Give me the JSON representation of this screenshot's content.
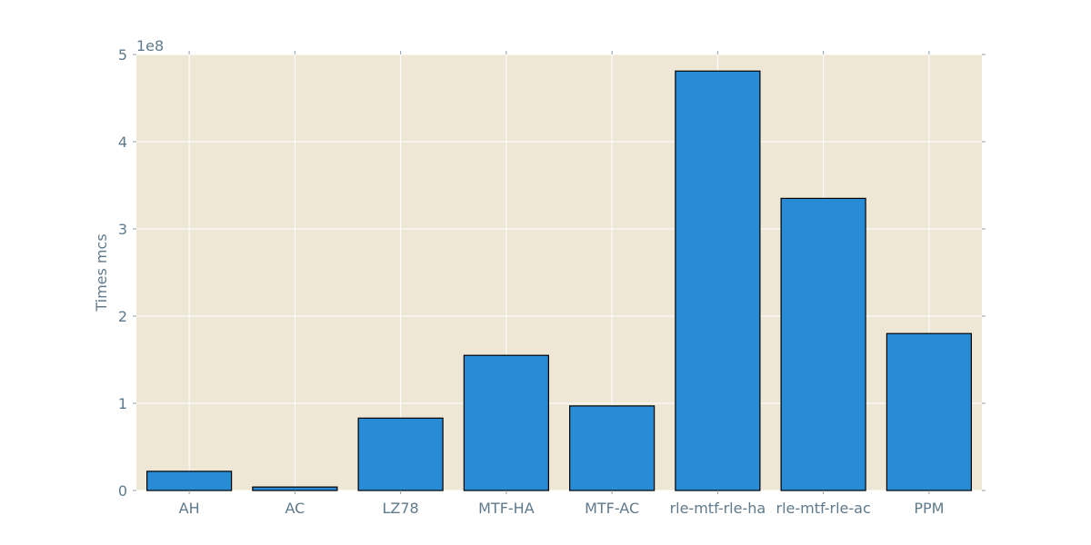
{
  "chart_data": {
    "type": "bar",
    "categories": [
      "AH",
      "AC",
      "LZ78",
      "MTF-HA",
      "MTF-AC",
      "rle-mtf-rle-ha",
      "rle-mtf-rle-ac",
      "PPM"
    ],
    "values": [
      22000000,
      4000000,
      83000000,
      155000000,
      97000000,
      481000000,
      335000000,
      180000000
    ],
    "title": "",
    "xlabel": "",
    "ylabel": "Times mcs",
    "ylim": [
      0,
      500000000
    ],
    "yticks": [
      0,
      100000000,
      200000000,
      300000000,
      400000000,
      500000000
    ],
    "ytick_labels": [
      "0",
      "1",
      "2",
      "3",
      "4",
      "5"
    ],
    "offset_label": "1e8",
    "grid": true,
    "legend": "none",
    "colors": {
      "bar": "#288bd5",
      "bar_edge": "#000000",
      "plot_background": "#eee7d5",
      "grid": "#ffffff",
      "text": "#5f7a8c",
      "tick": "#8fa0ab"
    }
  }
}
